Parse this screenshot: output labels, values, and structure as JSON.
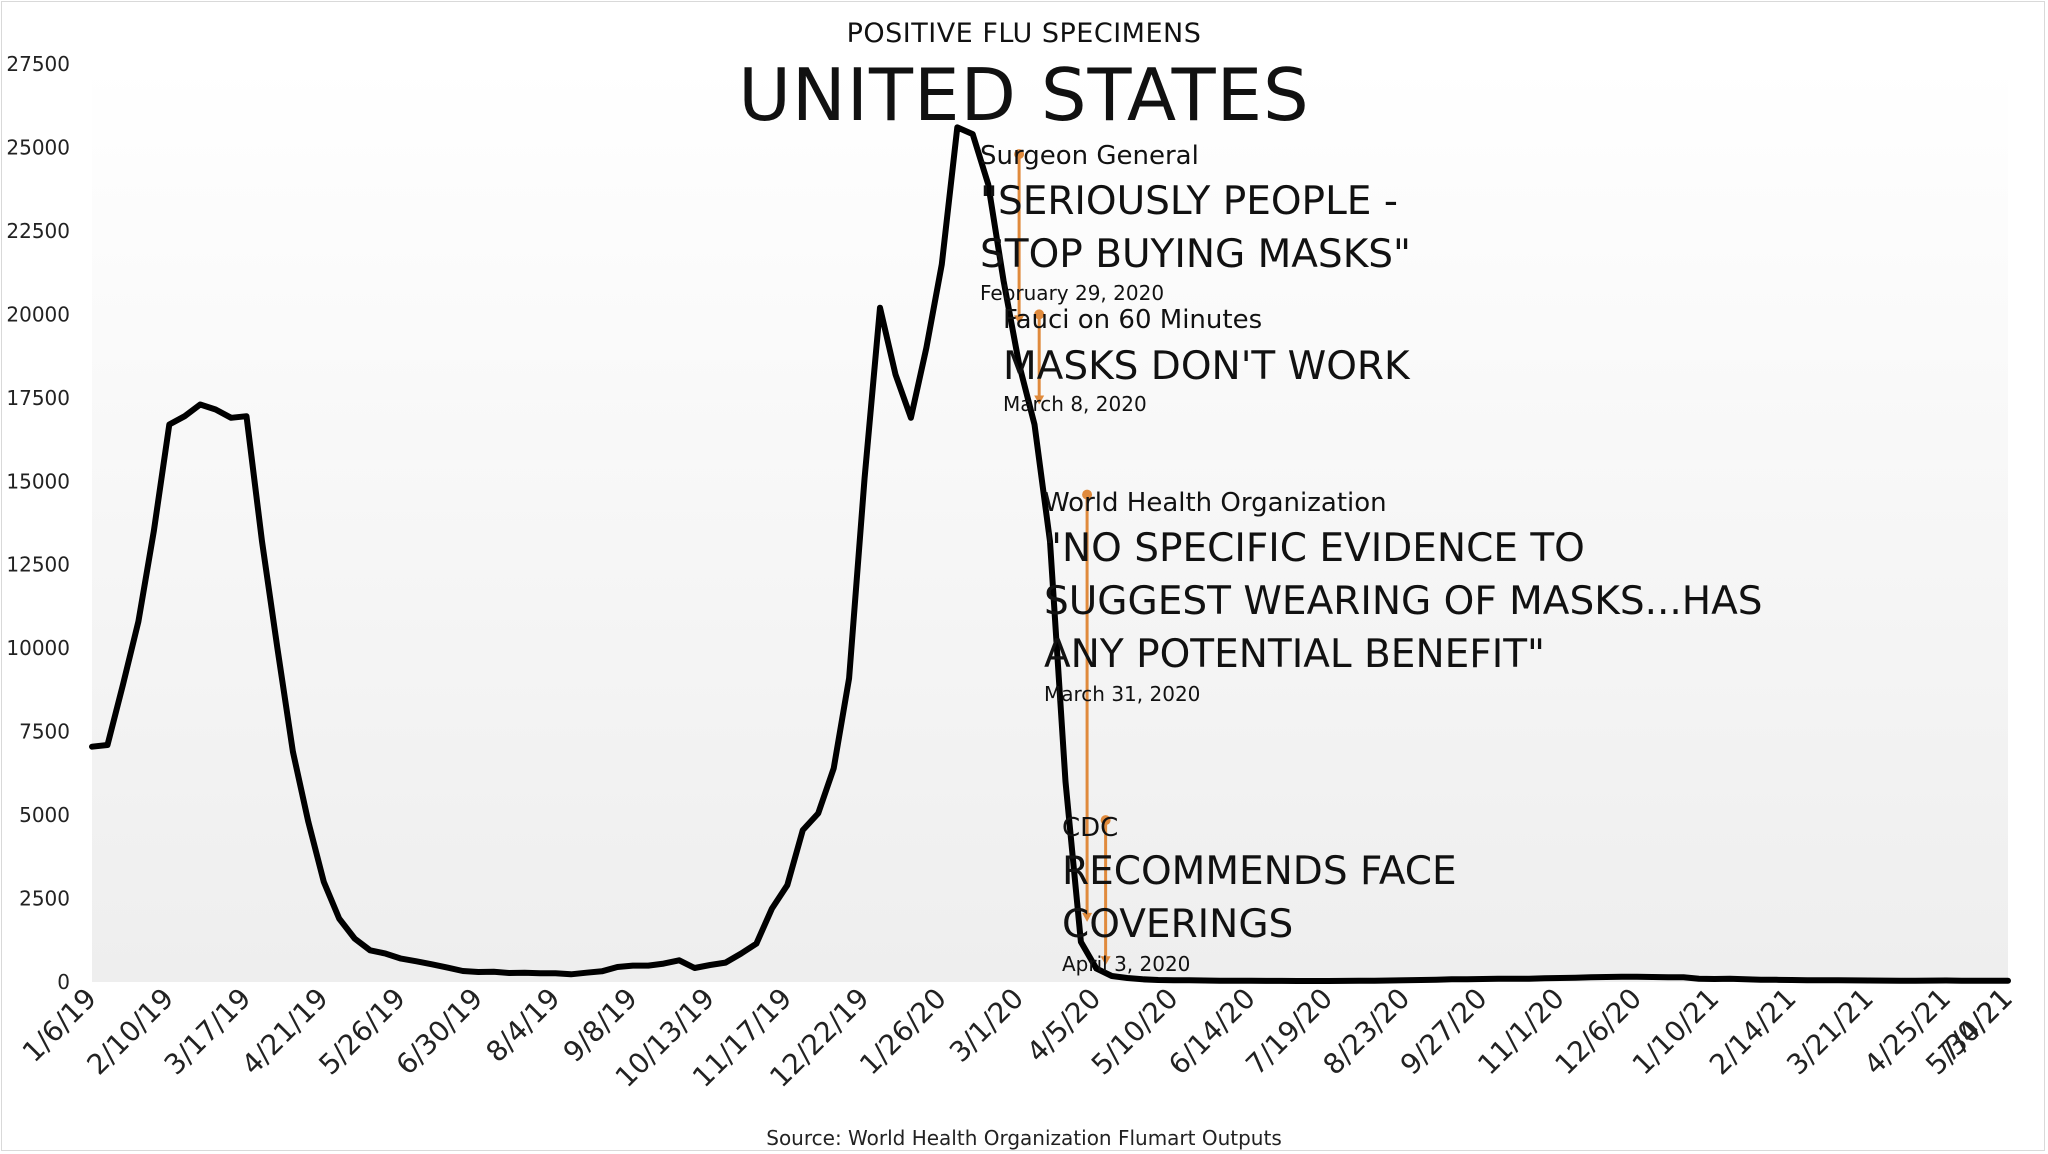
{
  "supertitle": "POSITIVE FLU SPECIMENS",
  "title": "UNITED STATES",
  "source": "Source: World Health Organization Flumart Outputs",
  "colors": {
    "line": "#000000",
    "annotation": "#e08a3c",
    "gradient_top": "#ffffff",
    "gradient_bottom": "#eeeeee"
  },
  "annotations": [
    {
      "org": "Surgeon General",
      "quote_lines": [
        "\"SERIOUSLY PEOPLE -",
        "STOP BUYING MASKS\""
      ],
      "date": "February 29, 2020",
      "x_index": 60,
      "y_top": 24800,
      "y_bottom": 19700
    },
    {
      "org": "Fauci on 60 Minutes",
      "quote_lines": [
        "MASKS DON'T WORK"
      ],
      "date": "March 8, 2020",
      "x_index": 61.3,
      "y_top": 20000,
      "y_bottom": 17300
    },
    {
      "org": "World Health Organization",
      "quote_lines": [
        "\"NO SPECIFIC EVIDENCE TO",
        "SUGGEST WEARING OF MASKS...HAS",
        "ANY POTENTIAL BENEFIT\""
      ],
      "date": "March 31, 2020",
      "x_index": 64.4,
      "y_top": 14600,
      "y_bottom": 1800
    },
    {
      "org": "CDC",
      "quote_lines": [
        "RECOMMENDS FACE",
        "COVERINGS"
      ],
      "date": "April 3, 2020",
      "x_index": 65.6,
      "y_top": 4850,
      "y_bottom": 500
    }
  ],
  "chart_data": {
    "type": "line",
    "title": "UNITED STATES",
    "subtitle": "POSITIVE FLU SPECIMENS",
    "xlabel": "",
    "ylabel": "",
    "ylim": [
      0,
      27500
    ],
    "yticks": [
      0,
      2500,
      5000,
      7500,
      10000,
      12500,
      15000,
      17500,
      20000,
      22500,
      25000,
      27500
    ],
    "x_tick_labels": [
      "1/6/19",
      "2/10/19",
      "3/17/19",
      "4/21/19",
      "5/26/19",
      "6/30/19",
      "8/4/19",
      "9/8/19",
      "10/13/19",
      "11/17/19",
      "12/22/19",
      "1/26/20",
      "3/1/20",
      "4/5/20",
      "5/10/20",
      "6/14/20",
      "7/19/20",
      "8/23/20",
      "9/27/20",
      "11/1/20",
      "12/6/20",
      "1/10/21",
      "2/14/21",
      "3/21/21",
      "4/25/21",
      "5/30/21",
      "7/4/21"
    ],
    "x_tick_every_weeks": 5,
    "grid": false,
    "legend": "none",
    "series": [
      {
        "values": [
          7050,
          7100,
          8900,
          10800,
          13500,
          16700,
          16950,
          17300,
          17150,
          16900,
          16950,
          13200,
          10000,
          6900,
          4800,
          3000,
          1900,
          1300,
          950,
          850,
          700,
          620,
          530,
          430,
          330,
          300,
          310,
          270,
          280,
          260,
          260,
          230,
          280,
          320,
          450,
          490,
          490,
          550,
          650,
          420,
          510,
          580,
          850,
          1150,
          2200,
          2900,
          4550,
          5050,
          6400,
          9100,
          15100,
          20200,
          18200,
          16900,
          19000,
          21500,
          25600,
          25400,
          23900,
          21000,
          18500,
          16700,
          13200,
          6000,
          1200,
          400,
          180,
          120,
          80,
          60,
          55,
          50,
          45,
          40,
          38,
          35,
          33,
          32,
          30,
          30,
          30,
          32,
          35,
          40,
          45,
          50,
          60,
          70,
          80,
          85,
          90,
          95,
          100,
          100,
          110,
          120,
          130,
          140,
          150,
          160,
          160,
          150,
          140,
          140,
          100,
          90,
          95,
          80,
          70,
          65,
          60,
          55,
          50,
          50,
          48,
          45,
          42,
          40,
          40,
          42,
          45,
          40,
          38,
          35,
          35
        ]
      }
    ]
  }
}
